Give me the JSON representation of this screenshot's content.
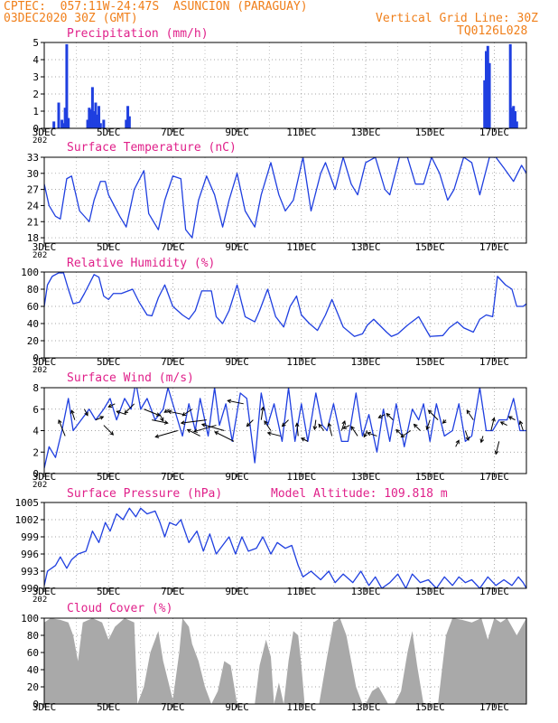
{
  "header": {
    "line1": "CPTEC:  057:11W-24:47S  ASUNCION (PARAGUAY)",
    "line2": "03DEC2020 30Z (GMT)",
    "grid_note": "Vertical Grid Line: 30Z",
    "code": "TQ0126L028"
  },
  "colors": {
    "header": "#f07f1a",
    "title": "#e0208a",
    "series": "#1f3fe0",
    "bar": "#1f3fe0",
    "cloud": "#a9a9a9",
    "grid": "#888888",
    "frame": "#000000"
  },
  "x_axis": {
    "start_day": 3,
    "end_day": 18,
    "tick_labels": [
      "3DEC",
      "5DEC",
      "7DEC",
      "9DEC",
      "11DEC",
      "13DEC",
      "15DEC",
      "17DEC"
    ],
    "tick_days": [
      3,
      5,
      7,
      9,
      11,
      13,
      15,
      17
    ],
    "clipped_label": "202"
  },
  "chart_data": [
    {
      "type": "bar",
      "title": "Precipitation (mm/h)",
      "ylim": [
        0,
        5
      ],
      "yticks": [
        0,
        1,
        2,
        3,
        4,
        5
      ],
      "x": [
        3.3,
        3.45,
        3.55,
        3.6,
        3.65,
        3.7,
        3.75,
        4.35,
        4.4,
        4.45,
        4.5,
        4.55,
        4.6,
        4.65,
        4.7,
        4.75,
        4.85,
        5.55,
        5.6,
        5.65,
        16.7,
        16.75,
        16.8,
        16.85,
        17.5,
        17.55,
        17.6,
        17.65,
        17.7
      ],
      "values": [
        0.4,
        1.5,
        0.5,
        0.3,
        1.2,
        4.9,
        0.6,
        0.5,
        1.2,
        1.1,
        2.4,
        1.0,
        1.5,
        0.8,
        1.3,
        0.3,
        0.5,
        0.5,
        1.3,
        0.7,
        2.8,
        4.5,
        4.8,
        3.8,
        4.9,
        1.2,
        1.3,
        1.0,
        0.4
      ]
    },
    {
      "type": "line",
      "title": "Surface Temperature (nC)",
      "ylim": [
        17,
        33
      ],
      "yticks": [
        18,
        21,
        24,
        27,
        30,
        33
      ],
      "x": [
        3.0,
        3.15,
        3.35,
        3.5,
        3.7,
        3.85,
        4.1,
        4.4,
        4.55,
        4.75,
        4.9,
        5.0,
        5.35,
        5.55,
        5.8,
        6.1,
        6.25,
        6.55,
        6.75,
        7.0,
        7.25,
        7.4,
        7.6,
        7.8,
        8.05,
        8.3,
        8.55,
        8.75,
        9.0,
        9.25,
        9.55,
        9.75,
        10.05,
        10.3,
        10.5,
        10.75,
        11.05,
        11.3,
        11.6,
        11.75,
        12.05,
        12.3,
        12.55,
        12.75,
        13.0,
        13.3,
        13.6,
        13.75,
        14.05,
        14.3,
        14.55,
        14.8,
        15.05,
        15.3,
        15.55,
        15.75,
        16.05,
        16.3,
        16.55,
        16.85,
        17.05,
        17.3,
        17.6,
        17.85,
        18.0
      ],
      "values": [
        28,
        24,
        22,
        21.5,
        29,
        29.5,
        23,
        21,
        25,
        28.5,
        28.5,
        26,
        22,
        20,
        27,
        30.5,
        22.5,
        19.5,
        25,
        29.5,
        29,
        19.5,
        18,
        25,
        29.5,
        26,
        20,
        25,
        30,
        23,
        20,
        26,
        32,
        26,
        23,
        25,
        33,
        23,
        30,
        32,
        27,
        33,
        28,
        26,
        32,
        33,
        27,
        26,
        33,
        33,
        28,
        28,
        33,
        30,
        25,
        27,
        33,
        32,
        26,
        33,
        33,
        31,
        28.5,
        31.5,
        30
      ]
    },
    {
      "type": "line",
      "title": "Relative Humidity (%)",
      "ylim": [
        0,
        100
      ],
      "yticks": [
        0,
        20,
        40,
        60,
        80,
        100
      ],
      "x": [
        3.0,
        3.1,
        3.25,
        3.45,
        3.6,
        3.75,
        3.9,
        4.1,
        4.25,
        4.55,
        4.7,
        4.85,
        5.0,
        5.15,
        5.4,
        5.75,
        5.95,
        6.2,
        6.35,
        6.55,
        6.75,
        7.0,
        7.3,
        7.5,
        7.7,
        7.9,
        8.2,
        8.35,
        8.55,
        8.75,
        9.0,
        9.25,
        9.55,
        9.7,
        9.95,
        10.2,
        10.45,
        10.65,
        10.85,
        11.0,
        11.25,
        11.5,
        11.75,
        11.95,
        12.3,
        12.65,
        12.9,
        13.05,
        13.25,
        13.65,
        13.8,
        14.0,
        14.3,
        14.65,
        14.8,
        15.0,
        15.4,
        15.6,
        15.85,
        16.05,
        16.35,
        16.55,
        16.75,
        16.95,
        17.1,
        17.35,
        17.55,
        17.7,
        17.9,
        18.0
      ],
      "values": [
        60,
        85,
        95,
        99,
        99,
        80,
        63,
        65,
        75,
        97,
        94,
        72,
        68,
        75,
        75,
        80,
        65,
        50,
        49,
        70,
        85,
        60,
        50,
        45,
        55,
        78,
        78,
        48,
        40,
        55,
        85,
        48,
        42,
        55,
        80,
        48,
        36,
        60,
        72,
        50,
        40,
        32,
        50,
        68,
        36,
        25,
        28,
        38,
        45,
        30,
        25,
        28,
        38,
        48,
        38,
        25,
        26,
        35,
        42,
        35,
        30,
        45,
        50,
        48,
        95,
        85,
        80,
        60,
        60,
        63
      ]
    },
    {
      "type": "line",
      "title": "Surface Wind (m/s)",
      "ylim": [
        0,
        8
      ],
      "yticks": [
        0,
        2,
        4,
        6,
        8
      ],
      "x": [
        3.0,
        3.15,
        3.35,
        3.55,
        3.75,
        3.9,
        4.15,
        4.4,
        4.6,
        4.85,
        5.05,
        5.25,
        5.5,
        5.7,
        5.85,
        6.0,
        6.2,
        6.45,
        6.7,
        6.85,
        7.05,
        7.3,
        7.5,
        7.7,
        7.85,
        8.1,
        8.3,
        8.45,
        8.65,
        8.85,
        9.1,
        9.3,
        9.55,
        9.75,
        9.95,
        10.15,
        10.4,
        10.6,
        10.8,
        11.0,
        11.2,
        11.45,
        11.65,
        11.8,
        12.0,
        12.25,
        12.45,
        12.7,
        12.9,
        13.1,
        13.35,
        13.55,
        13.75,
        13.95,
        14.2,
        14.45,
        14.65,
        14.8,
        15.0,
        15.2,
        15.45,
        15.7,
        15.9,
        16.1,
        16.3,
        16.55,
        16.75,
        16.95,
        17.15,
        17.4,
        17.6,
        17.8,
        18.0
      ],
      "values": [
        0.5,
        2.5,
        1.5,
        4,
        7,
        4,
        5,
        6,
        5,
        6,
        7,
        5,
        7,
        6,
        8.5,
        6,
        7,
        5,
        6,
        8,
        6,
        3.5,
        6.5,
        4,
        7,
        3.5,
        8,
        4.5,
        6.5,
        3,
        7.5,
        7,
        1,
        7.5,
        4.5,
        6.5,
        3,
        8,
        3,
        6.5,
        3,
        7.5,
        4.5,
        4,
        6.5,
        3,
        3,
        7.5,
        3.5,
        5.5,
        2,
        6,
        3,
        6.5,
        2.5,
        6,
        5,
        6.5,
        3,
        6.5,
        3.5,
        4,
        6.5,
        3,
        3.5,
        8,
        4,
        4,
        5,
        5,
        7,
        4,
        4
      ]
    },
    {
      "type": "line",
      "title": "Surface Pressure (hPa)",
      "annotation": "Model Altitude: 109.818 m",
      "ylim": [
        990,
        1005
      ],
      "yticks": [
        990,
        993,
        996,
        999,
        1002,
        1005
      ],
      "x": [
        3.0,
        3.1,
        3.35,
        3.5,
        3.7,
        3.85,
        4.05,
        4.3,
        4.5,
        4.7,
        4.9,
        5.05,
        5.25,
        5.45,
        5.65,
        5.85,
        6.0,
        6.2,
        6.45,
        6.6,
        6.75,
        6.9,
        7.1,
        7.25,
        7.5,
        7.75,
        7.95,
        8.15,
        8.35,
        8.55,
        8.75,
        8.95,
        9.15,
        9.35,
        9.6,
        9.8,
        10.05,
        10.25,
        10.5,
        10.7,
        10.9,
        11.05,
        11.3,
        11.6,
        11.85,
        12.05,
        12.3,
        12.6,
        12.85,
        13.1,
        13.3,
        13.5,
        13.75,
        14.0,
        14.25,
        14.45,
        14.7,
        14.95,
        15.2,
        15.45,
        15.7,
        15.9,
        16.1,
        16.3,
        16.55,
        16.8,
        17.05,
        17.3,
        17.55,
        17.75,
        17.9,
        18.0
      ],
      "values": [
        990.5,
        993,
        994,
        995.5,
        993.5,
        995,
        996,
        996.5,
        1000,
        998,
        1001.5,
        1000,
        1003,
        1002,
        1004,
        1002.5,
        1004,
        1003,
        1003.5,
        1001.5,
        999,
        1001.5,
        1001,
        1002,
        998,
        1000,
        996.5,
        999.5,
        996,
        997.5,
        999,
        996,
        999,
        996.5,
        997,
        999,
        996,
        998,
        997,
        997.5,
        994,
        992,
        993,
        991.5,
        993,
        991,
        992.5,
        991,
        993,
        990.5,
        992,
        990,
        991,
        992.5,
        990,
        992.5,
        991,
        991.5,
        990,
        992,
        990.5,
        992,
        991,
        991.5,
        990,
        992,
        990.5,
        991.5,
        990.5,
        992,
        991,
        990
      ]
    },
    {
      "type": "area",
      "title": "Cloud Cover (%)",
      "ylim": [
        0,
        100
      ],
      "yticks": [
        0,
        20,
        40,
        60,
        80,
        100
      ],
      "x": [
        3.0,
        3.2,
        3.5,
        3.75,
        3.9,
        4.05,
        4.2,
        4.5,
        4.8,
        5.0,
        5.2,
        5.5,
        5.8,
        5.9,
        6.1,
        6.3,
        6.55,
        6.7,
        7.0,
        7.2,
        7.3,
        7.5,
        7.6,
        7.8,
        8.0,
        8.2,
        8.4,
        8.6,
        8.8,
        9.0,
        9.2,
        9.4,
        9.55,
        9.7,
        9.9,
        10.05,
        10.15,
        10.3,
        10.45,
        10.6,
        10.75,
        10.9,
        11.0,
        11.1,
        11.3,
        11.55,
        11.8,
        12.0,
        12.2,
        12.4,
        12.55,
        12.7,
        12.9,
        13.0,
        13.2,
        13.4,
        13.55,
        13.7,
        13.9,
        14.1,
        14.3,
        14.45,
        14.6,
        14.8,
        15.0,
        15.25,
        15.5,
        15.7,
        16.0,
        16.3,
        16.6,
        16.8,
        17.0,
        17.2,
        17.4,
        17.7,
        18.0
      ],
      "values": [
        95,
        100,
        98,
        95,
        80,
        50,
        95,
        100,
        95,
        75,
        90,
        100,
        95,
        0,
        20,
        60,
        85,
        50,
        5,
        60,
        100,
        90,
        70,
        50,
        20,
        0,
        15,
        50,
        45,
        0,
        0,
        0,
        0,
        45,
        75,
        55,
        0,
        25,
        0,
        50,
        85,
        80,
        45,
        0,
        0,
        0,
        55,
        95,
        100,
        80,
        50,
        20,
        0,
        0,
        15,
        20,
        10,
        0,
        0,
        15,
        60,
        85,
        45,
        0,
        0,
        0,
        80,
        100,
        98,
        95,
        100,
        75,
        100,
        95,
        100,
        80,
        100
      ]
    }
  ],
  "wind_vectors": {
    "x": [
      3.65,
      3.95,
      4.25,
      4.6,
      4.85,
      5.2,
      5.55,
      5.8,
      6.1,
      6.35,
      6.6,
      6.9,
      7.15,
      7.35,
      7.6,
      7.85,
      8.05,
      8.35,
      8.6,
      8.9,
      9.2,
      9.5,
      9.75,
      10.05,
      10.35,
      10.6,
      10.9,
      11.2,
      11.45,
      11.7,
      11.95,
      12.25,
      12.5,
      12.75,
      13.05,
      13.35,
      13.6,
      13.85,
      14.15,
      14.4,
      14.7,
      15.0,
      15.25,
      15.5,
      15.8,
      16.1,
      16.35,
      16.65,
      16.9,
      17.15,
      17.4,
      17.65,
      17.9
    ],
    "y": [
      3.5,
      5,
      6,
      5,
      4.5,
      6.5,
      5.5,
      6.5,
      6,
      5,
      5.5,
      6,
      4,
      5.5,
      6,
      3.5,
      5,
      4.5,
      4,
      3,
      6.5,
      5,
      5,
      4,
      3.5,
      5,
      3.5,
      3,
      5,
      4,
      3.5,
      4,
      4.5,
      3.5,
      4,
      3.5,
      5.5,
      5,
      3.5,
      4,
      4,
      5,
      5,
      5,
      2.5,
      4,
      5,
      3.5,
      4,
      3,
      4.5,
      5,
      4
    ],
    "u": [
      -1,
      -0.5,
      0.5,
      1.2,
      1.5,
      -1,
      -1.5,
      -1.5,
      2.5,
      2.5,
      0.5,
      -0.8,
      -3.5,
      -2.5,
      -1.5,
      -2,
      -4,
      -3.5,
      -3.5,
      -3,
      -2.5,
      -1,
      0.3,
      -1,
      -2,
      -1,
      -0.2,
      -1,
      -0.2,
      -0.8,
      -0.5,
      0.5,
      -1,
      -1,
      -0.5,
      -1.5,
      -1,
      -1,
      -1,
      -1.5,
      -1,
      -0.5,
      -1.5,
      -0.5,
      0.5,
      0.5,
      -1,
      -0.3,
      0.5,
      -0.5,
      -1,
      -1,
      -0.5
    ],
    "v": [
      2.5,
      1.5,
      -1,
      0.5,
      -1.5,
      -0.5,
      0.5,
      -1.5,
      -1,
      -0.5,
      -1,
      -0.5,
      -1,
      0.5,
      -1,
      1,
      -0.5,
      -1,
      1,
      1.5,
      0.5,
      -1,
      2,
      1.5,
      0.5,
      -1,
      2,
      0.5,
      -1.5,
      1,
      2,
      1.5,
      -0.5,
      1.5,
      -1,
      0.5,
      -0.5,
      1,
      1,
      -1,
      1,
      -1.5,
      1.5,
      -0.5,
      1,
      -1.5,
      1.5,
      -1,
      2,
      -2,
      0.5,
      0.5,
      1.5
    ]
  }
}
